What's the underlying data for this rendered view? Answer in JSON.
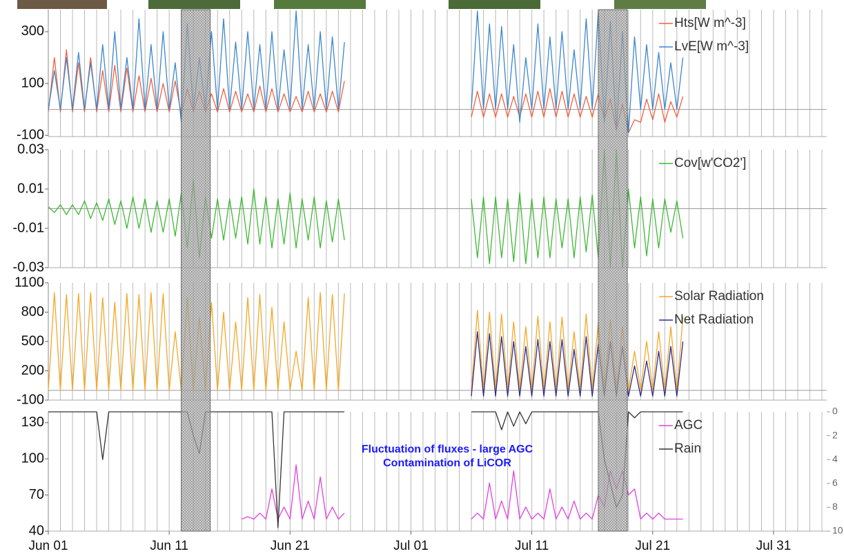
{
  "chart_data": [
    {
      "type": "line",
      "x": [
        0,
        0.5,
        1,
        1.5,
        2,
        2.5,
        3,
        3.5,
        4,
        4.5,
        5,
        5.5,
        6,
        6.5,
        7,
        7.5,
        8,
        8.5,
        9,
        9.5,
        10,
        10.5,
        11,
        11.5,
        12,
        12.5,
        13,
        13.5,
        14,
        14.5,
        15,
        15.5,
        16,
        16.5,
        17,
        17.5,
        18,
        18.5,
        19,
        19.5,
        20,
        20.5,
        21,
        21.5,
        22,
        22.5,
        23,
        23.5,
        24,
        24.5,
        30,
        35,
        35.5,
        36,
        36.5,
        37,
        37.5,
        38,
        38.5,
        39,
        39.5,
        40,
        40.5,
        41,
        41.5,
        42,
        42.5,
        43,
        43.5,
        44,
        44.5,
        45,
        45.5,
        46,
        46.5,
        47,
        47.5,
        48,
        48.5,
        49,
        49.5,
        50,
        50.5,
        51,
        51.5,
        52,
        52.5
      ],
      "ylim": [
        -105,
        385
      ],
      "yticks": [
        300,
        100,
        -100
      ],
      "zero_line": true,
      "legend": "upper right",
      "series": [
        {
          "name": "Hts[W m^-3]",
          "color": "#f0603c",
          "values": [
            -10,
            200,
            -10,
            230,
            -10,
            180,
            -10,
            200,
            -10,
            150,
            -10,
            170,
            -10,
            160,
            -10,
            130,
            -10,
            120,
            -10,
            100,
            -10,
            110,
            -20,
            80,
            -10,
            70,
            -10,
            60,
            -10,
            80,
            -10,
            70,
            -10,
            60,
            -10,
            90,
            -10,
            80,
            -10,
            60,
            -10,
            50,
            -10,
            70,
            -10,
            60,
            -10,
            70,
            -10,
            110,
            null,
            -30,
            70,
            -30,
            60,
            -30,
            60,
            -30,
            50,
            -30,
            60,
            -30,
            70,
            -30,
            80,
            -30,
            70,
            -30,
            60,
            -30,
            50,
            -30,
            60,
            -40,
            40,
            -80,
            20,
            -90,
            -40,
            -50,
            40,
            -40,
            60,
            -50,
            30,
            -30,
            50
          ]
        },
        {
          "name": "LvE[W m^-3]",
          "color": "#3a86d0",
          "values": [
            0,
            150,
            0,
            200,
            0,
            220,
            0,
            180,
            0,
            250,
            0,
            300,
            0,
            200,
            0,
            350,
            0,
            250,
            0,
            300,
            0,
            180,
            -50,
            330,
            0,
            200,
            0,
            300,
            0,
            350,
            0,
            260,
            0,
            300,
            0,
            250,
            0,
            300,
            0,
            230,
            0,
            380,
            0,
            250,
            0,
            300,
            0,
            280,
            0,
            260,
            null,
            0,
            380,
            0,
            330,
            0,
            320,
            0,
            250,
            -50,
            200,
            0,
            330,
            0,
            280,
            0,
            300,
            0,
            230,
            0,
            350,
            0,
            380,
            -50,
            340,
            -80,
            300,
            -90,
            280,
            0,
            250,
            0,
            220,
            0,
            180,
            0,
            200
          ]
        }
      ]
    },
    {
      "type": "line",
      "x": [
        0,
        0.5,
        1,
        1.5,
        2,
        2.5,
        3,
        3.5,
        4,
        4.5,
        5,
        5.5,
        6,
        6.5,
        7,
        7.5,
        8,
        8.5,
        9,
        9.5,
        10,
        10.5,
        11,
        11.5,
        12,
        12.5,
        13,
        13.5,
        14,
        14.5,
        15,
        15.5,
        16,
        16.5,
        17,
        17.5,
        18,
        18.5,
        19,
        19.5,
        20,
        20.5,
        21,
        21.5,
        22,
        22.5,
        23,
        23.5,
        24,
        24.5,
        30,
        35,
        35.5,
        36,
        36.5,
        37,
        37.5,
        38,
        38.5,
        39,
        39.5,
        40,
        40.5,
        41,
        41.5,
        42,
        42.5,
        43,
        43.5,
        44,
        44.5,
        45,
        45.5,
        46,
        46.5,
        47,
        47.5,
        48,
        48.5,
        49,
        49.5,
        50,
        50.5,
        51,
        51.5,
        52,
        52.5
      ],
      "ylim": [
        -0.03,
        0.03
      ],
      "yticks": [
        0.03,
        0.01,
        -0.01,
        -0.03
      ],
      "zero_line": true,
      "legend": "upper right",
      "series": [
        {
          "name": "Cov[w'CO2']",
          "color": "#3cb832",
          "values": [
            0.001,
            -0.002,
            0.002,
            -0.003,
            0.002,
            -0.003,
            0.004,
            -0.005,
            0.003,
            -0.006,
            0.005,
            -0.008,
            0.004,
            -0.01,
            0.006,
            -0.01,
            0.005,
            -0.012,
            0.004,
            -0.012,
            0.005,
            -0.014,
            0.008,
            -0.02,
            0.015,
            -0.025,
            0.006,
            -0.015,
            0.005,
            -0.016,
            0.005,
            -0.015,
            0.006,
            -0.018,
            0.01,
            -0.018,
            0.006,
            -0.02,
            0.005,
            -0.018,
            0.008,
            -0.02,
            0.005,
            -0.016,
            0.006,
            -0.02,
            0.004,
            -0.017,
            0.005,
            -0.016,
            null,
            0.005,
            -0.025,
            0.006,
            -0.028,
            0.006,
            -0.025,
            0.005,
            -0.027,
            0.008,
            -0.028,
            0.005,
            -0.025,
            0.006,
            -0.025,
            0.005,
            -0.02,
            0.005,
            -0.025,
            0.006,
            -0.022,
            0.007,
            -0.025,
            0.03,
            -0.03,
            0.03,
            -0.03,
            0.01,
            -0.02,
            0.006,
            -0.024,
            0.005,
            -0.02,
            0.005,
            -0.012,
            0.004,
            -0.015
          ]
        }
      ]
    },
    {
      "type": "line",
      "x": [
        0,
        0.5,
        1,
        1.5,
        2,
        2.5,
        3,
        3.5,
        4,
        4.5,
        5,
        5.5,
        6,
        6.5,
        7,
        7.5,
        8,
        8.5,
        9,
        9.5,
        10,
        10.5,
        11,
        11.5,
        12,
        12.5,
        13,
        13.5,
        14,
        14.5,
        15,
        15.5,
        16,
        16.5,
        17,
        17.5,
        18,
        18.5,
        19,
        19.5,
        20,
        20.5,
        21,
        21.5,
        22,
        22.5,
        23,
        23.5,
        24,
        24.5,
        30,
        35,
        35.5,
        36,
        36.5,
        37,
        37.5,
        38,
        38.5,
        39,
        39.5,
        40,
        40.5,
        41,
        41.5,
        42,
        42.5,
        43,
        43.5,
        44,
        44.5,
        45,
        45.5,
        46,
        46.5,
        47,
        47.5,
        48,
        48.5,
        49,
        49.5,
        50,
        50.5,
        51,
        51.5,
        52,
        52.5
      ],
      "ylim": [
        -100,
        1100
      ],
      "yticks": [
        1100,
        800,
        500,
        200,
        -100
      ],
      "zero_line": true,
      "legend": "upper right",
      "series": [
        {
          "name": "Solar Radiation",
          "color": "#f5a623",
          "values": [
            0,
            1000,
            0,
            980,
            0,
            990,
            0,
            1000,
            0,
            950,
            0,
            900,
            0,
            990,
            0,
            980,
            0,
            1000,
            0,
            990,
            0,
            600,
            0,
            950,
            0,
            750,
            0,
            900,
            0,
            800,
            0,
            700,
            0,
            950,
            0,
            980,
            0,
            850,
            0,
            700,
            0,
            400,
            0,
            950,
            0,
            1000,
            0,
            980,
            0,
            990,
            null,
            0,
            820,
            0,
            800,
            0,
            780,
            0,
            700,
            0,
            650,
            0,
            760,
            0,
            700,
            0,
            750,
            0,
            600,
            0,
            780,
            0,
            700,
            0,
            720,
            0,
            650,
            0,
            400,
            0,
            500,
            0,
            600,
            0,
            650,
            0,
            750
          ]
        },
        {
          "name": "Net Radiation",
          "color": "#2b2b8c",
          "values": [
            null,
            null,
            null,
            null,
            null,
            null,
            null,
            null,
            null,
            null,
            null,
            null,
            null,
            null,
            null,
            null,
            null,
            null,
            null,
            null,
            null,
            null,
            null,
            null,
            null,
            null,
            null,
            null,
            null,
            null,
            null,
            null,
            null,
            null,
            null,
            null,
            null,
            null,
            null,
            null,
            null,
            null,
            null,
            null,
            null,
            null,
            null,
            null,
            null,
            null,
            null,
            -60,
            600,
            -60,
            580,
            -60,
            550,
            -60,
            500,
            -60,
            450,
            -60,
            520,
            -60,
            500,
            -60,
            520,
            -60,
            420,
            -60,
            550,
            -60,
            480,
            -60,
            500,
            -60,
            450,
            -60,
            250,
            -60,
            300,
            -60,
            400,
            -60,
            450,
            -60,
            500
          ]
        }
      ]
    },
    {
      "type": "line",
      "x": [
        0,
        0.5,
        1,
        1.5,
        2,
        2.5,
        3,
        3.5,
        4,
        4.5,
        5,
        5.5,
        6,
        6.5,
        7,
        7.5,
        8,
        8.5,
        9,
        9.5,
        10,
        10.5,
        11,
        11.5,
        12,
        12.5,
        13,
        13.5,
        14,
        14.5,
        15,
        15.5,
        16,
        16.5,
        17,
        17.5,
        18,
        18.5,
        19,
        19.5,
        20,
        20.5,
        21,
        21.5,
        22,
        22.5,
        23,
        23.5,
        24,
        24.5,
        30,
        35,
        35.5,
        36,
        36.5,
        37,
        37.5,
        38,
        38.5,
        39,
        39.5,
        40,
        40.5,
        41,
        41.5,
        42,
        42.5,
        43,
        43.5,
        44,
        44.5,
        45,
        45.5,
        46,
        46.5,
        47,
        47.5,
        48,
        48.5,
        49,
        49.5,
        50,
        50.5,
        51,
        51.5,
        52,
        52.5
      ],
      "xlim": [
        0,
        64.4
      ],
      "xticks": [
        {
          "value": 0,
          "label": "Jun 01"
        },
        {
          "value": 10,
          "label": "Jun 11"
        },
        {
          "value": 20,
          "label": "Jun 21"
        },
        {
          "value": 30,
          "label": "Jul 01"
        },
        {
          "value": 40,
          "label": "Jul 11"
        },
        {
          "value": 50,
          "label": "Jul 21"
        },
        {
          "value": 60,
          "label": "Jul 31"
        }
      ],
      "x_minor_ticks": [
        0,
        1,
        2,
        3,
        4,
        5,
        6,
        7,
        8,
        9,
        10,
        11,
        12,
        13,
        14,
        15,
        16,
        17,
        18,
        19,
        20,
        21,
        22,
        23,
        24,
        25,
        26,
        27,
        28,
        29,
        30,
        31,
        32,
        33,
        34,
        35,
        36,
        37,
        38,
        39,
        40,
        41,
        42,
        43,
        44,
        45,
        46,
        47,
        48,
        49,
        50,
        51,
        52,
        53,
        54,
        55,
        56,
        57,
        58,
        59,
        60,
        61,
        62,
        63,
        64
      ],
      "highlight_ranges": [
        [
          11.0,
          13.4
        ],
        [
          45.5,
          47.9
        ]
      ],
      "ylim": [
        40,
        139
      ],
      "yticks": [
        130,
        100,
        70,
        40
      ],
      "y2lim": [
        10,
        0
      ],
      "y2ticks": [
        0,
        2,
        4,
        6,
        8,
        10
      ],
      "legend": "upper right",
      "annotation": [
        "Fluctuation of fluxes - large AGC",
        "Contamination of LiCOR"
      ],
      "series": [
        {
          "name": "AGC",
          "color": "#e040e0",
          "values": [
            null,
            null,
            null,
            null,
            null,
            null,
            null,
            null,
            null,
            null,
            null,
            null,
            null,
            null,
            null,
            null,
            null,
            null,
            null,
            null,
            null,
            null,
            null,
            null,
            null,
            null,
            null,
            null,
            null,
            null,
            null,
            null,
            50,
            52,
            50,
            55,
            50,
            75,
            50,
            60,
            50,
            95,
            50,
            65,
            50,
            85,
            50,
            60,
            50,
            55,
            null,
            50,
            55,
            50,
            80,
            50,
            65,
            50,
            90,
            50,
            60,
            50,
            55,
            50,
            75,
            50,
            60,
            50,
            65,
            50,
            55,
            50,
            70,
            60,
            90,
            75,
            90,
            70,
            75,
            50,
            55,
            50,
            55,
            50,
            50,
            50,
            50
          ]
        },
        {
          "name": "Rain",
          "color": "#333333",
          "axis": "y2",
          "values": [
            0,
            0,
            0,
            0,
            0,
            0,
            0,
            0,
            0,
            4,
            0,
            0,
            0,
            0,
            0,
            0,
            0,
            0,
            0,
            0,
            0,
            0,
            0,
            0,
            2,
            3.5,
            0,
            0,
            0,
            0,
            0,
            0,
            0,
            0,
            0,
            0,
            0,
            0,
            9.7,
            0,
            0,
            0,
            0,
            0,
            0,
            0,
            0,
            0,
            0,
            0,
            null,
            0,
            0,
            0,
            0,
            0,
            1.5,
            0,
            1.2,
            0,
            1,
            0,
            0,
            0,
            0,
            0,
            0,
            0,
            0,
            0,
            0,
            0,
            0,
            4,
            6,
            8,
            7,
            0,
            0.5,
            0,
            0,
            0,
            0,
            0,
            0,
            0,
            0
          ]
        }
      ]
    }
  ]
}
